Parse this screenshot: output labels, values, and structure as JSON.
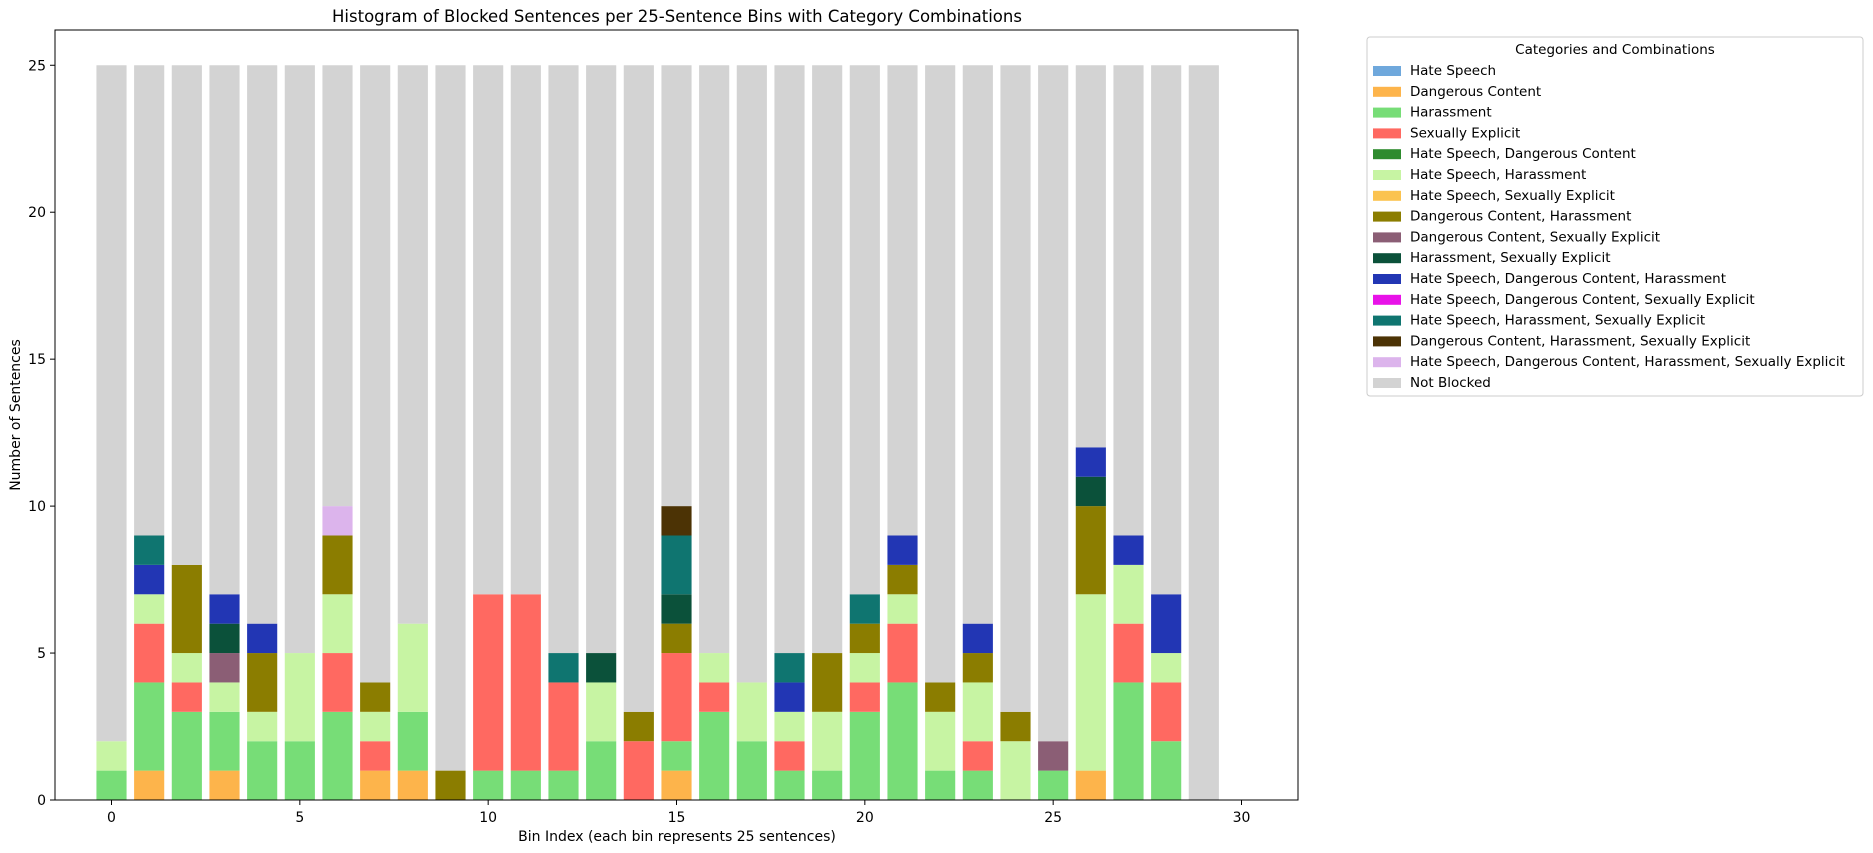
{
  "chart_data": {
    "type": "bar",
    "stacked": true,
    "title": "Histogram of Blocked Sentences per 25-Sentence Bins with Category Combinations",
    "xlabel": "Bin Index (each bin represents 25 sentences)",
    "ylabel": "Number of Sentences",
    "xlim": [
      -1.5,
      31.5
    ],
    "ylim": [
      0,
      26.2
    ],
    "xticks": [
      0,
      5,
      10,
      15,
      20,
      25,
      30
    ],
    "yticks": [
      0,
      5,
      10,
      15,
      20,
      25
    ],
    "grid": false,
    "legend_title": "Categories and Combinations",
    "legend_position": "outside-top-right",
    "categories": [
      0,
      1,
      2,
      3,
      4,
      5,
      6,
      7,
      8,
      9,
      10,
      11,
      12,
      13,
      14,
      15,
      16,
      17,
      18,
      19,
      20,
      21,
      22,
      23,
      24,
      25,
      26,
      27,
      28,
      29
    ],
    "series": [
      {
        "name": "Hate Speech",
        "color": "#6fa8dc",
        "values": [
          0,
          0,
          0,
          0,
          0,
          0,
          0,
          0,
          0,
          0,
          0,
          0,
          0,
          0,
          0,
          0,
          0,
          0,
          0,
          0,
          0,
          0,
          0,
          0,
          0,
          0,
          0,
          0,
          0,
          0
        ]
      },
      {
        "name": "Dangerous Content",
        "color": "#fdb44b",
        "values": [
          0,
          1,
          0,
          1,
          0,
          0,
          0,
          1,
          1,
          0,
          0,
          0,
          0,
          0,
          0,
          1,
          0,
          0,
          0,
          0,
          0,
          0,
          0,
          0,
          0,
          0,
          1,
          0,
          0,
          0
        ]
      },
      {
        "name": "Harassment",
        "color": "#77dd77",
        "values": [
          1,
          3,
          3,
          2,
          2,
          2,
          3,
          0,
          2,
          0,
          1,
          1,
          1,
          2,
          0,
          1,
          3,
          2,
          1,
          1,
          3,
          4,
          1,
          1,
          0,
          1,
          0,
          4,
          2,
          0
        ]
      },
      {
        "name": "Sexually Explicit",
        "color": "#ff6961",
        "values": [
          0,
          2,
          1,
          0,
          0,
          0,
          2,
          1,
          0,
          0,
          6,
          6,
          3,
          0,
          2,
          3,
          1,
          0,
          1,
          0,
          1,
          2,
          0,
          1,
          0,
          0,
          0,
          2,
          2,
          0
        ]
      },
      {
        "name": "Hate Speech, Dangerous Content",
        "color": "#2e8b2e",
        "values": [
          0,
          0,
          0,
          0,
          0,
          0,
          0,
          0,
          0,
          0,
          0,
          0,
          0,
          0,
          0,
          0,
          0,
          0,
          0,
          0,
          0,
          0,
          0,
          0,
          0,
          0,
          0,
          0,
          0,
          0
        ]
      },
      {
        "name": "Hate Speech, Harassment",
        "color": "#c7f4a3",
        "values": [
          1,
          1,
          1,
          1,
          1,
          3,
          2,
          1,
          3,
          0,
          0,
          0,
          0,
          2,
          0,
          0,
          1,
          2,
          1,
          2,
          1,
          1,
          2,
          2,
          2,
          0,
          6,
          2,
          1,
          0
        ]
      },
      {
        "name": "Hate Speech, Sexually Explicit",
        "color": "#fbc350",
        "values": [
          0,
          0,
          0,
          0,
          0,
          0,
          0,
          0,
          0,
          0,
          0,
          0,
          0,
          0,
          0,
          0,
          0,
          0,
          0,
          0,
          0,
          0,
          0,
          0,
          0,
          0,
          0,
          0,
          0,
          0
        ]
      },
      {
        "name": "Dangerous Content, Harassment",
        "color": "#8b7d00",
        "values": [
          0,
          0,
          3,
          0,
          2,
          0,
          2,
          1,
          0,
          1,
          0,
          0,
          0,
          0,
          1,
          1,
          0,
          0,
          0,
          2,
          1,
          1,
          1,
          1,
          1,
          0,
          3,
          0,
          0,
          0
        ]
      },
      {
        "name": "Dangerous Content, Sexually Explicit",
        "color": "#8b5e75",
        "values": [
          0,
          0,
          0,
          1,
          0,
          0,
          0,
          0,
          0,
          0,
          0,
          0,
          0,
          0,
          0,
          0,
          0,
          0,
          0,
          0,
          0,
          0,
          0,
          0,
          0,
          1,
          0,
          0,
          0,
          0
        ]
      },
      {
        "name": "Harassment, Sexually Explicit",
        "color": "#0b513a",
        "values": [
          0,
          0,
          0,
          1,
          0,
          0,
          0,
          0,
          0,
          0,
          0,
          0,
          0,
          1,
          0,
          1,
          0,
          0,
          0,
          0,
          0,
          0,
          0,
          0,
          0,
          0,
          1,
          0,
          0,
          0
        ]
      },
      {
        "name": "Hate Speech, Dangerous Content, Harassment",
        "color": "#2236b4",
        "values": [
          0,
          1,
          0,
          1,
          1,
          0,
          0,
          0,
          0,
          0,
          0,
          0,
          0,
          0,
          0,
          0,
          0,
          0,
          1,
          0,
          0,
          1,
          0,
          1,
          0,
          0,
          1,
          1,
          2,
          0
        ]
      },
      {
        "name": "Hate Speech, Dangerous Content, Sexually Explicit",
        "color": "#e812e8",
        "values": [
          0,
          0,
          0,
          0,
          0,
          0,
          0,
          0,
          0,
          0,
          0,
          0,
          0,
          0,
          0,
          0,
          0,
          0,
          0,
          0,
          0,
          0,
          0,
          0,
          0,
          0,
          0,
          0,
          0,
          0
        ]
      },
      {
        "name": "Hate Speech, Harassment, Sexually Explicit",
        "color": "#0f7570",
        "values": [
          0,
          1,
          0,
          0,
          0,
          0,
          0,
          0,
          0,
          0,
          0,
          0,
          1,
          0,
          0,
          2,
          0,
          0,
          1,
          0,
          1,
          0,
          0,
          0,
          0,
          0,
          0,
          0,
          0,
          0
        ]
      },
      {
        "name": "Dangerous Content, Harassment, Sexually Explicit",
        "color": "#4c3305",
        "values": [
          0,
          0,
          0,
          0,
          0,
          0,
          0,
          0,
          0,
          0,
          0,
          0,
          0,
          0,
          0,
          1,
          0,
          0,
          0,
          0,
          0,
          0,
          0,
          0,
          0,
          0,
          0,
          0,
          0,
          0
        ]
      },
      {
        "name": "Hate Speech, Dangerous Content, Harassment, Sexually Explicit",
        "color": "#dcb4ec",
        "values": [
          0,
          0,
          0,
          0,
          0,
          0,
          1,
          0,
          0,
          0,
          0,
          0,
          0,
          0,
          0,
          0,
          0,
          0,
          0,
          0,
          0,
          0,
          0,
          0,
          0,
          0,
          0,
          0,
          0,
          0
        ]
      },
      {
        "name": "Not Blocked",
        "color": "#d3d3d3",
        "values": [
          23,
          16,
          17,
          18,
          19,
          20,
          15,
          21,
          19,
          24,
          18,
          18,
          20,
          20,
          22,
          15,
          20,
          21,
          20,
          20,
          18,
          16,
          21,
          19,
          22,
          23,
          13,
          16,
          18,
          25
        ]
      }
    ]
  }
}
